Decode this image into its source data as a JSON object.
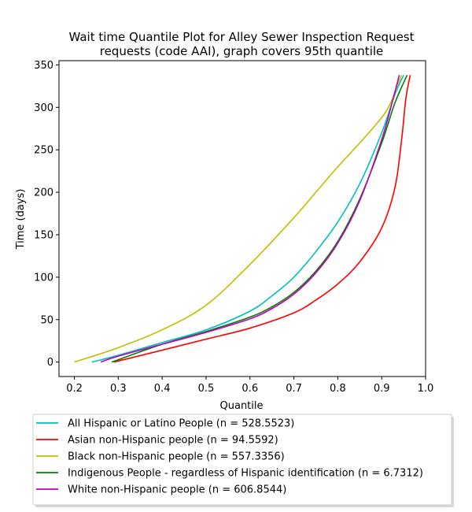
{
  "chart_data": {
    "type": "line",
    "title": "Wait time Quantile Plot for Alley Sewer Inspection Request requests (code AAI), graph covers 95th quantile",
    "title_lines": [
      "Wait time Quantile Plot for Alley Sewer Inspection Request",
      "requests (code AAI), graph covers 95th quantile"
    ],
    "xlabel": "Quantile",
    "ylabel": "Time (days)",
    "xlim": [
      0.165,
      1.0
    ],
    "ylim": [
      -17,
      355
    ],
    "x_ticks": [
      0.2,
      0.3,
      0.4,
      0.5,
      0.6,
      0.7,
      0.8,
      0.9,
      1.0
    ],
    "x_tick_labels": [
      "0.2",
      "0.3",
      "0.4",
      "0.5",
      "0.6",
      "0.7",
      "0.8",
      "0.9",
      "1.0"
    ],
    "y_ticks": [
      0,
      50,
      100,
      150,
      200,
      250,
      300,
      350
    ],
    "y_tick_labels": [
      "0",
      "50",
      "100",
      "150",
      "200",
      "250",
      "300",
      "350"
    ],
    "grid": false,
    "legend_placement": "below plot",
    "series": [
      {
        "name": "All Hispanic or Latino People (n = 528.5523)",
        "color": "#00bfbf",
        "points": [
          [
            0.24,
            0
          ],
          [
            0.3,
            8
          ],
          [
            0.4,
            23
          ],
          [
            0.5,
            38
          ],
          [
            0.6,
            60
          ],
          [
            0.65,
            78
          ],
          [
            0.7,
            100
          ],
          [
            0.75,
            130
          ],
          [
            0.8,
            165
          ],
          [
            0.85,
            210
          ],
          [
            0.9,
            270
          ],
          [
            0.93,
            315
          ],
          [
            0.95,
            338
          ]
        ]
      },
      {
        "name": "Asian non-Hispanic people (n = 94.5592)",
        "color": "#ff0000",
        "points": [
          [
            0.29,
            0
          ],
          [
            0.4,
            14
          ],
          [
            0.5,
            27
          ],
          [
            0.6,
            40
          ],
          [
            0.7,
            58
          ],
          [
            0.75,
            73
          ],
          [
            0.8,
            92
          ],
          [
            0.85,
            118
          ],
          [
            0.9,
            158
          ],
          [
            0.93,
            205
          ],
          [
            0.945,
            260
          ],
          [
            0.955,
            310
          ],
          [
            0.965,
            338
          ]
        ]
      },
      {
        "name": "Black non-Hispanic people (n = 557.3356)",
        "color": "#bfbf00",
        "points": [
          [
            0.2,
            0
          ],
          [
            0.3,
            17
          ],
          [
            0.4,
            38
          ],
          [
            0.5,
            67
          ],
          [
            0.6,
            115
          ],
          [
            0.7,
            170
          ],
          [
            0.75,
            200
          ],
          [
            0.8,
            230
          ],
          [
            0.85,
            258
          ],
          [
            0.9,
            288
          ],
          [
            0.92,
            305
          ],
          [
            0.935,
            325
          ],
          [
            0.945,
            338
          ]
        ]
      },
      {
        "name": "Indigenous People - regardless of Hispanic identification (n = 6.7312)",
        "color": "#008000",
        "points": [
          [
            0.285,
            0
          ],
          [
            0.4,
            21
          ],
          [
            0.5,
            36
          ],
          [
            0.6,
            53
          ],
          [
            0.65,
            65
          ],
          [
            0.7,
            82
          ],
          [
            0.75,
            107
          ],
          [
            0.8,
            142
          ],
          [
            0.85,
            192
          ],
          [
            0.9,
            258
          ],
          [
            0.93,
            305
          ],
          [
            0.958,
            338
          ]
        ]
      },
      {
        "name": "White non-Hispanic people (n = 606.8544)",
        "color": "#bf00bf",
        "points": [
          [
            0.26,
            0
          ],
          [
            0.3,
            7
          ],
          [
            0.4,
            21
          ],
          [
            0.5,
            35
          ],
          [
            0.6,
            51
          ],
          [
            0.65,
            63
          ],
          [
            0.7,
            80
          ],
          [
            0.75,
            105
          ],
          [
            0.8,
            140
          ],
          [
            0.85,
            190
          ],
          [
            0.9,
            262
          ],
          [
            0.925,
            308
          ],
          [
            0.94,
            338
          ]
        ]
      }
    ]
  }
}
